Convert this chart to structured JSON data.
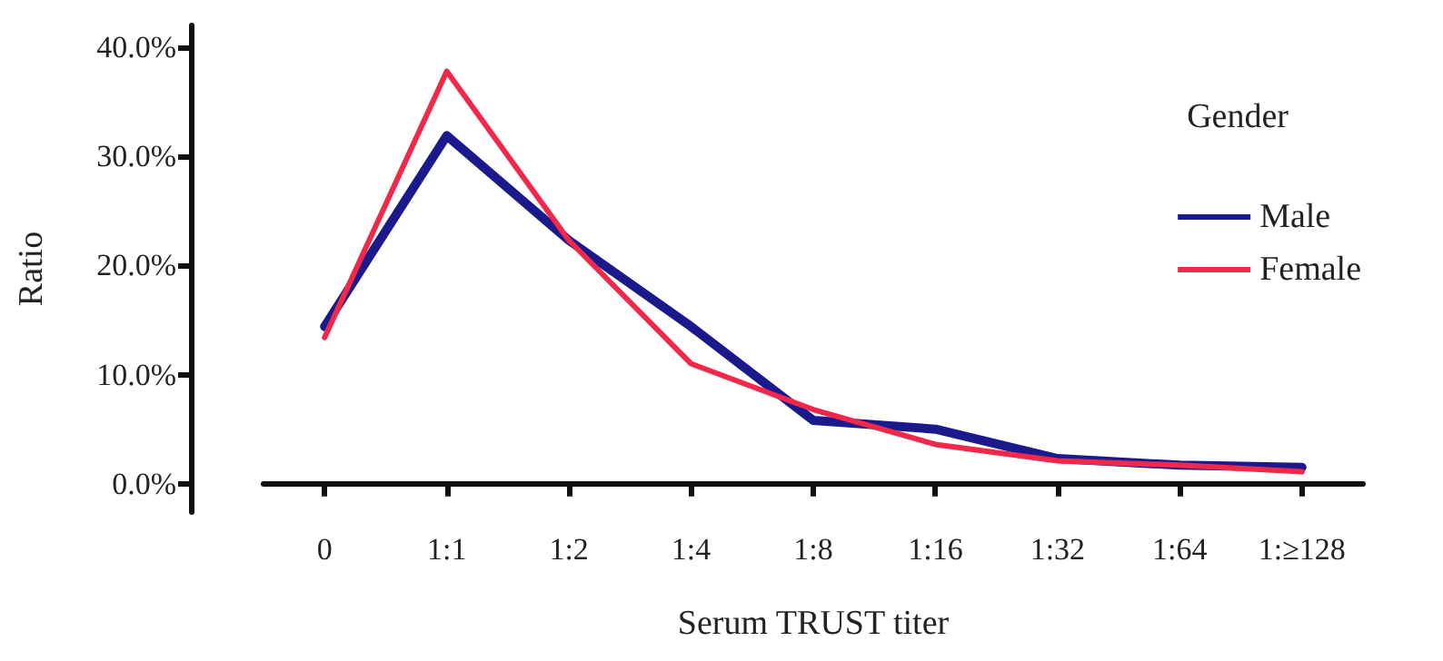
{
  "chart_data": {
    "type": "line",
    "xlabel": "Serum TRUST titer",
    "ylabel": "Ratio",
    "legend_title": "Gender",
    "legend": "top right",
    "grid": false,
    "marker": "none",
    "line_style": "solid",
    "categories": [
      "0",
      "1:1",
      "1:2",
      "1:4",
      "1:8",
      "1:16",
      "1:32",
      "1:64",
      "1:≥128"
    ],
    "ylim": [
      -2.6,
      42
    ],
    "yticks": [
      {
        "value": 0,
        "label": "0.0%"
      },
      {
        "value": 10,
        "label": "10.0%"
      },
      {
        "value": 20,
        "label": "20.0%"
      },
      {
        "value": 30,
        "label": "30.0%"
      },
      {
        "value": 40,
        "label": "40.0%"
      }
    ],
    "series": [
      {
        "name": "Male",
        "color": "#1a1a8c",
        "values": [
          14.4,
          31.9,
          22.3,
          14.4,
          5.8,
          5.0,
          2.3,
          1.7,
          1.5
        ]
      },
      {
        "name": "Female",
        "color": "#f0284a",
        "values": [
          13.4,
          37.8,
          22.3,
          11.0,
          6.8,
          3.6,
          2.1,
          1.7,
          1.1
        ]
      }
    ]
  }
}
